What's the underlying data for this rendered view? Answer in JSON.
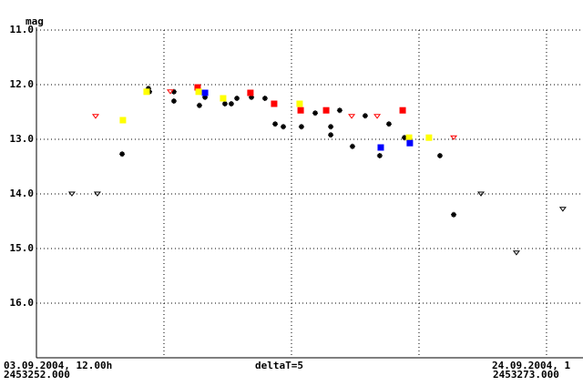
{
  "chart_data": {
    "type": "scatter",
    "y_label": "mag",
    "x_start_label": "03.09.2004, 12.00h",
    "x_start_jd_label": "2453252.000",
    "x_end_label": "24.09.2004, 1",
    "x_end_jd_label": "2453273.000",
    "x_step_label": "deltaT=5",
    "xlim": [
      2453252.0,
      2453273.43
    ],
    "x_grid": [
      2453257,
      2453262,
      2453267,
      2453272
    ],
    "ylim": [
      11,
      17
    ],
    "y_inverted": true,
    "yticks": [
      {
        "value": 11,
        "label": "11.0"
      },
      {
        "value": 12,
        "label": "12.0"
      },
      {
        "value": 13,
        "label": "13.0"
      },
      {
        "value": 14,
        "label": "14.0"
      },
      {
        "value": 15,
        "label": "15.0"
      },
      {
        "value": 16,
        "label": "16.0"
      },
      {
        "value": 17,
        "label": ""
      }
    ],
    "grid": true,
    "series": [
      {
        "marker": "star",
        "color": "#000000",
        "x": [
          2453255.36,
          2453256.39,
          2453256.43,
          2453257.39,
          2453257.39,
          2453258.39,
          2453258.61,
          2453259.39,
          2453259.64,
          2453259.86,
          2453260.43,
          2453260.96,
          2453261.36,
          2453261.68,
          2453262.39,
          2453262.93,
          2453263.54,
          2453263.54,
          2453263.89,
          2453264.39,
          2453264.89,
          2453265.46,
          2453265.82,
          2453266.43,
          2453267.82,
          2453268.36
        ],
        "values": [
          13.27,
          12.07,
          12.13,
          12.13,
          12.3,
          12.38,
          12.23,
          12.35,
          12.35,
          12.25,
          12.23,
          12.25,
          12.72,
          12.77,
          12.77,
          12.52,
          12.77,
          12.92,
          12.47,
          13.13,
          12.57,
          13.3,
          12.72,
          12.97,
          13.3,
          14.38
        ]
      },
      {
        "marker": "square",
        "color": "#ff0000",
        "x": [
          2453258.32,
          2453260.39,
          2453261.32,
          2453262.36,
          2453263.36,
          2453266.36
        ],
        "values": [
          12.05,
          12.15,
          12.35,
          12.47,
          12.47,
          12.47
        ]
      },
      {
        "marker": "square",
        "color": "#ffff00",
        "x": [
          2453255.39,
          2453256.32,
          2453258.36,
          2453259.32,
          2453262.32,
          2453266.61,
          2453267.39
        ],
        "values": [
          12.65,
          12.13,
          12.13,
          12.25,
          12.35,
          12.97,
          12.97
        ]
      },
      {
        "marker": "square",
        "color": "#0000ff",
        "x": [
          2453258.61,
          2453265.5,
          2453266.64
        ],
        "values": [
          12.15,
          13.15,
          13.07
        ]
      },
      {
        "marker": "triangle-down",
        "color": "#ff0000",
        "x": [
          2453254.32,
          2453257.25,
          2453264.36,
          2453265.36,
          2453268.36
        ],
        "values": [
          12.58,
          12.13,
          12.58,
          12.58,
          12.97
        ]
      },
      {
        "marker": "triangle-down",
        "color": "#000000",
        "x": [
          2453253.39,
          2453254.39,
          2453269.43,
          2453270.82,
          2453272.64
        ],
        "values": [
          14.0,
          14.0,
          14.0,
          15.08,
          14.28
        ]
      }
    ]
  }
}
